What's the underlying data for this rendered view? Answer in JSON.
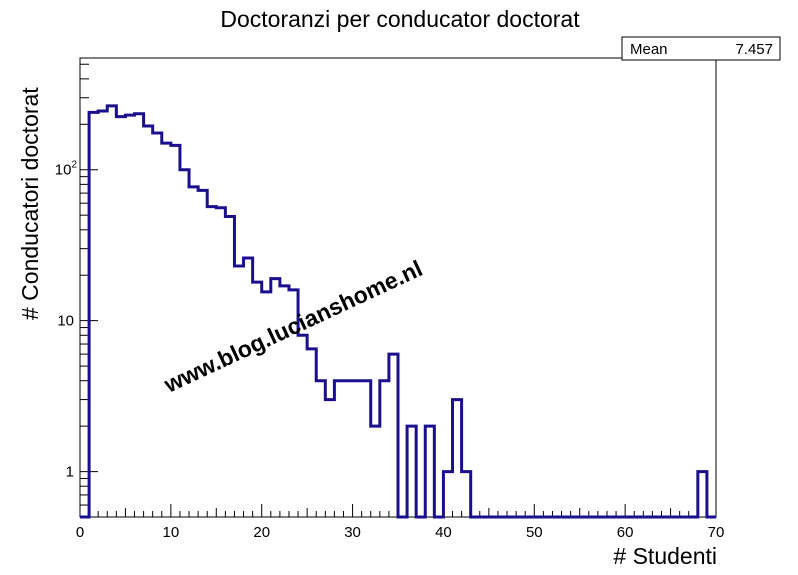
{
  "chart_data": {
    "type": "histogram",
    "title": "Doctoranzi per conducator doctorat",
    "xlabel": "# Studenti",
    "ylabel": "# Conducatori doctorat",
    "xlim": [
      0,
      70
    ],
    "ylim": [
      0.5,
      550
    ],
    "yscale": "log",
    "grid": false,
    "x_ticks": [
      "0",
      "10",
      "20",
      "30",
      "40",
      "50",
      "60",
      "70"
    ],
    "y_ticks": [
      {
        "value": 1,
        "label": "1"
      },
      {
        "value": 10,
        "label": "10"
      },
      {
        "value": 100,
        "label": "10",
        "exponent": "2"
      }
    ],
    "bin_width": 1,
    "bins": [
      {
        "x": 1,
        "y": 240
      },
      {
        "x": 2,
        "y": 245
      },
      {
        "x": 3,
        "y": 265
      },
      {
        "x": 4,
        "y": 225
      },
      {
        "x": 5,
        "y": 230
      },
      {
        "x": 6,
        "y": 235
      },
      {
        "x": 7,
        "y": 195
      },
      {
        "x": 8,
        "y": 175
      },
      {
        "x": 9,
        "y": 150
      },
      {
        "x": 10,
        "y": 145
      },
      {
        "x": 11,
        "y": 100
      },
      {
        "x": 12,
        "y": 77
      },
      {
        "x": 13,
        "y": 73
      },
      {
        "x": 14,
        "y": 57
      },
      {
        "x": 15,
        "y": 56
      },
      {
        "x": 16,
        "y": 49
      },
      {
        "x": 17,
        "y": 23
      },
      {
        "x": 18,
        "y": 26
      },
      {
        "x": 19,
        "y": 18
      },
      {
        "x": 20,
        "y": 15.5
      },
      {
        "x": 21,
        "y": 19
      },
      {
        "x": 22,
        "y": 17
      },
      {
        "x": 23,
        "y": 16
      },
      {
        "x": 24,
        "y": 8
      },
      {
        "x": 25,
        "y": 6.5
      },
      {
        "x": 26,
        "y": 4
      },
      {
        "x": 27,
        "y": 3
      },
      {
        "x": 28,
        "y": 4
      },
      {
        "x": 29,
        "y": 4
      },
      {
        "x": 30,
        "y": 4
      },
      {
        "x": 31,
        "y": 4
      },
      {
        "x": 32,
        "y": 2
      },
      {
        "x": 33,
        "y": 4
      },
      {
        "x": 34,
        "y": 6
      },
      {
        "x": 35,
        "y": 0
      },
      {
        "x": 36,
        "y": 2
      },
      {
        "x": 37,
        "y": 0
      },
      {
        "x": 38,
        "y": 2
      },
      {
        "x": 39,
        "y": 0
      },
      {
        "x": 40,
        "y": 1
      },
      {
        "x": 41,
        "y": 3
      },
      {
        "x": 42,
        "y": 1
      },
      {
        "x": 68,
        "y": 1
      }
    ],
    "stats_box": {
      "label": "Mean",
      "value": "7.457"
    },
    "watermark": "www.blog.lucianshome.nl",
    "line_color": "#1a0f8c"
  }
}
